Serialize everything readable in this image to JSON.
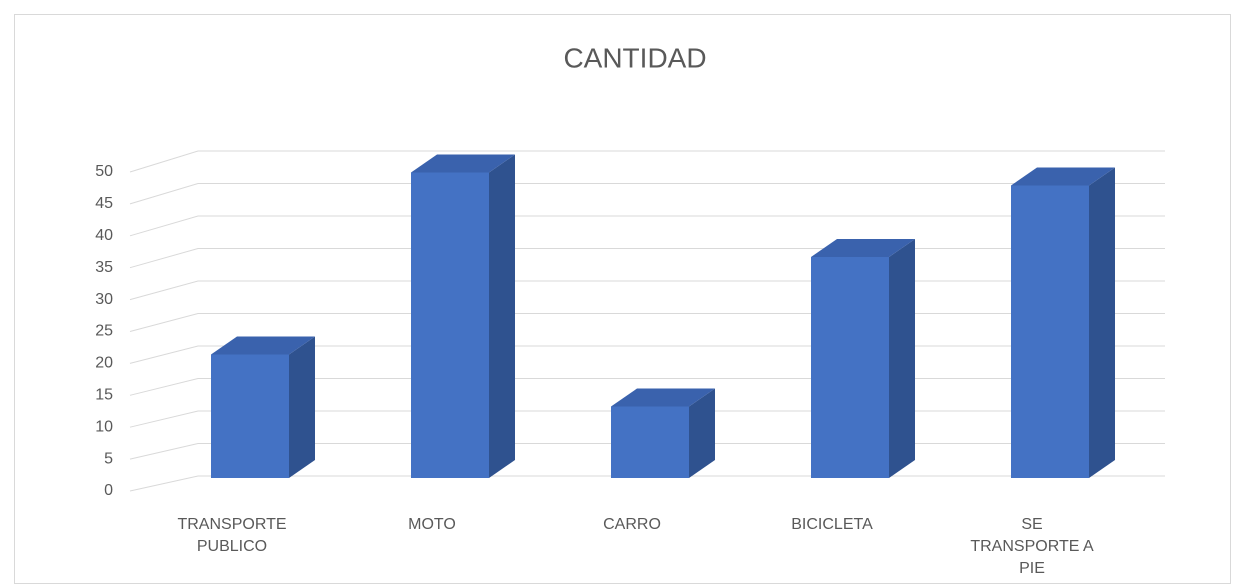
{
  "chart_data": {
    "type": "bar3d",
    "title": "CANTIDAD",
    "categories": [
      "TRANSPORTE PUBLICO",
      "MOTO",
      "CARRO",
      "BICICLETA",
      "SE TRANSPORTE A PIE"
    ],
    "values": [
      19,
      47,
      11,
      34,
      45
    ],
    "color": "#4472c4",
    "ylim": [
      0,
      50
    ],
    "yticks": [
      0,
      5,
      10,
      15,
      20,
      25,
      30,
      35,
      40,
      45,
      50
    ],
    "grid": true
  }
}
